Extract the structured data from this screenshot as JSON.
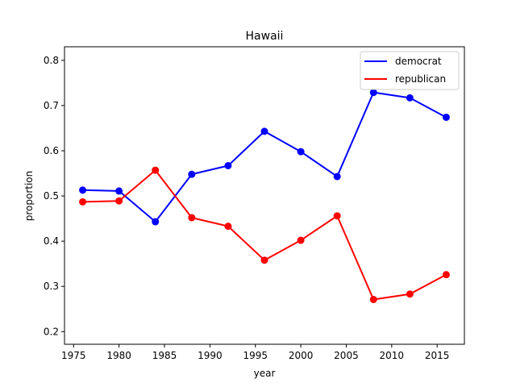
{
  "chart_data": {
    "type": "line",
    "title": "Hawaii",
    "xlabel": "year",
    "ylabel": "proportion",
    "xlim": [
      1974.0,
      2018.0
    ],
    "ylim": [
      0.172,
      0.83
    ],
    "x_ticks": [
      1975,
      1980,
      1985,
      1990,
      1995,
      2000,
      2005,
      2010,
      2015
    ],
    "y_ticks": [
      0.2,
      0.3,
      0.4,
      0.5,
      0.6,
      0.7,
      0.8
    ],
    "x_tick_labels": [
      "1975",
      "1980",
      "1985",
      "1990",
      "1995",
      "2000",
      "2005",
      "2010",
      "2015"
    ],
    "y_tick_labels": [
      "0.2",
      "0.3",
      "0.4",
      "0.5",
      "0.6",
      "0.7",
      "0.8"
    ],
    "x": [
      1976,
      1980,
      1984,
      1988,
      1992,
      1996,
      2000,
      2004,
      2008,
      2012,
      2016
    ],
    "grid": false,
    "legend_position": "top-right",
    "series": [
      {
        "name": "democrat",
        "color": "#0000ff",
        "values": [
          0.513,
          0.511,
          0.443,
          0.548,
          0.567,
          0.643,
          0.598,
          0.543,
          0.729,
          0.717,
          0.674
        ]
      },
      {
        "name": "republican",
        "color": "#ff0000",
        "values": [
          0.487,
          0.489,
          0.557,
          0.452,
          0.433,
          0.358,
          0.402,
          0.456,
          0.271,
          0.283,
          0.326
        ]
      }
    ]
  }
}
